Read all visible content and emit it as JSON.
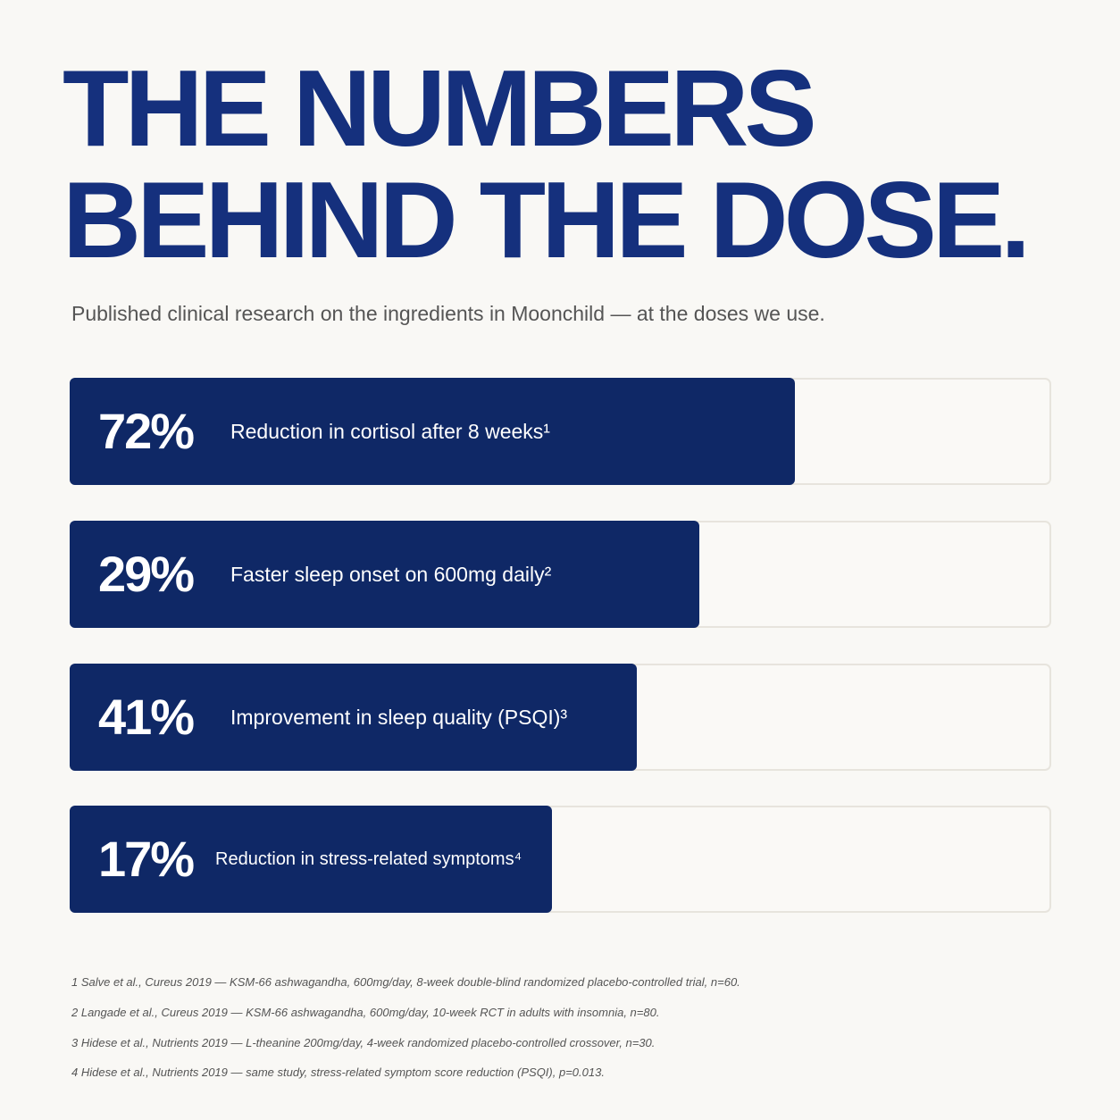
{
  "header": {
    "title_lines": [
      "THE NUMBERS",
      "BEHIND THE DOSE."
    ],
    "subtitle": "Published clinical research on the ingredients in Moonchild — at the doses we use."
  },
  "stats": [
    {
      "value": "72%",
      "label": "Reduction in cortisol after 8 weeks¹"
    },
    {
      "value": "29%",
      "label": "Faster sleep onset on 600mg daily²"
    },
    {
      "value": "41%",
      "label": "Improvement in sleep quality (PSQI)³"
    },
    {
      "value": "17%",
      "label": "Reduction in stress-related symptoms⁴"
    }
  ],
  "footnotes": [
    "1 Salve et al., Cureus 2019 — KSM-66 ashwagandha, 600mg/day, 8-week double-blind randomized placebo-controlled trial, n=60.",
    "2 Langade et al., Cureus 2019 — KSM-66 ashwagandha, 600mg/day, 10-week RCT in adults with insomnia, n=80.",
    "3 Hidese et al., Nutrients 2019 — L-theanine 200mg/day, 4-week randomized placebo-controlled crossover, n=30.",
    "4 Hidese et al., Nutrients 2019 — same study, stress-related symptom score reduction (PSQI), p=0.013."
  ]
}
